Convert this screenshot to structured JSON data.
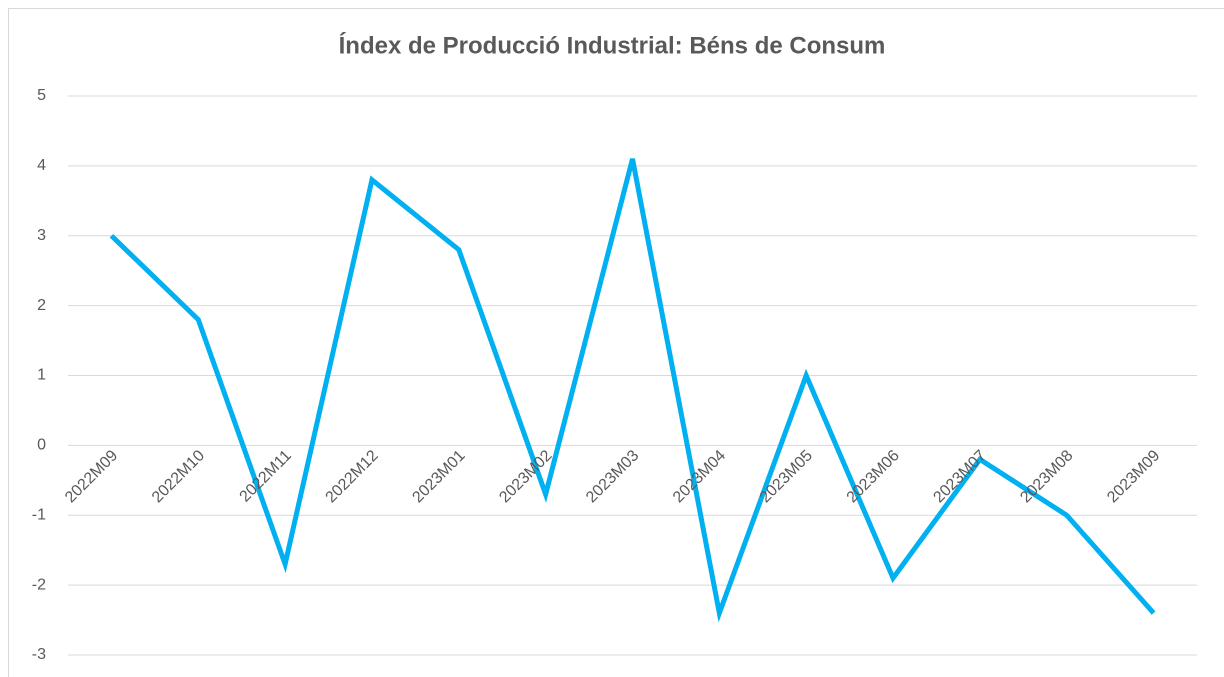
{
  "chart_data": {
    "type": "line",
    "title": "Índex de Producció Industrial: Béns de Consum",
    "categories": [
      "2022M09",
      "2022M10",
      "2022M11",
      "2022M12",
      "2023M01",
      "2023M02",
      "2023M03",
      "2023M04",
      "2023M05",
      "2023M06",
      "2023M07",
      "2023M08",
      "2023M09"
    ],
    "values": [
      3,
      1.8,
      -1.7,
      3.8,
      2.8,
      -0.7,
      4.1,
      -2.4,
      1.0,
      -1.9,
      -0.2,
      -1.0,
      -2.4
    ],
    "color": "#00b0f0",
    "ylim": [
      -3,
      5
    ],
    "yticks": [
      -3,
      -2,
      -1,
      0,
      1,
      2,
      3,
      4,
      5
    ],
    "grid": true
  }
}
